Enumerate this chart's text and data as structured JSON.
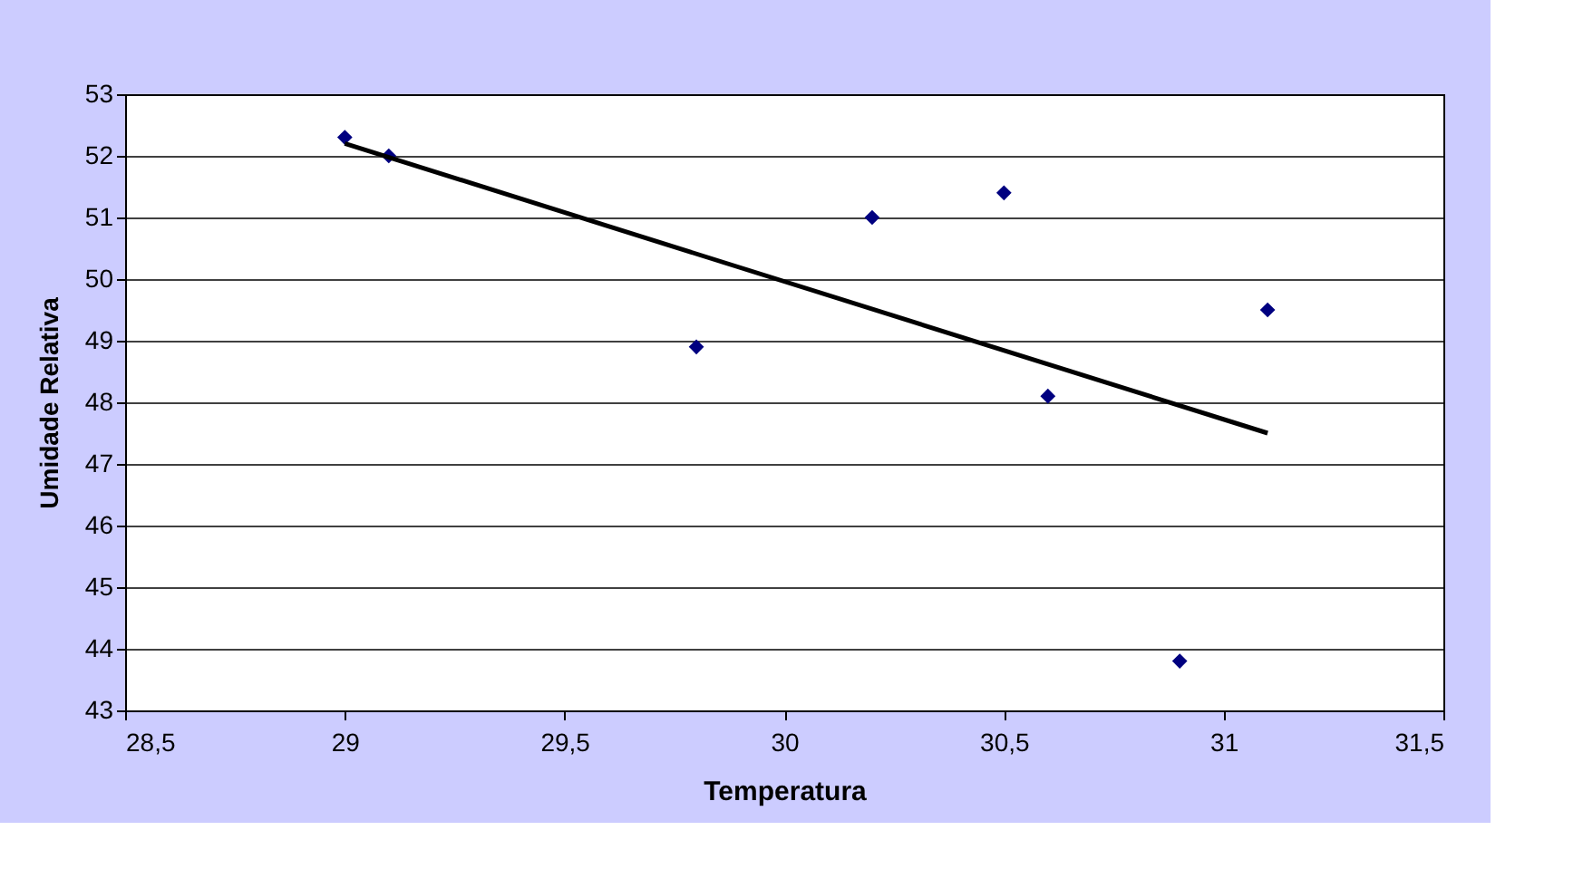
{
  "chart_data": {
    "type": "scatter",
    "xlabel": "Temperatura",
    "ylabel": "Umidade Relativa",
    "series": [
      {
        "color": "#000080",
        "marker": "diamond",
        "x": [
          29,
          29.1,
          29.8,
          30.2,
          30.5,
          30.6,
          30.9,
          31.1
        ],
        "values": [
          52.3,
          52.0,
          48.9,
          51.0,
          51.4,
          48.1,
          43.8,
          49.5
        ]
      },
      {
        "type": "line",
        "color": "#000000",
        "line_style": "solid",
        "x": [
          29,
          31.1
        ],
        "values": [
          52.2,
          47.5
        ]
      }
    ],
    "xlim": [
      28.5,
      31.5
    ],
    "xticks": [
      {
        "value": 28.5,
        "label": "28,5"
      },
      29,
      {
        "value": 29.5,
        "label": "29,5"
      },
      30,
      {
        "value": 30.5,
        "label": "30,5"
      },
      31,
      {
        "value": 31.5,
        "label": "31,5"
      }
    ],
    "ylim": [
      43,
      53
    ],
    "yticks": [
      43,
      44,
      45,
      46,
      47,
      48,
      49,
      50,
      51,
      52,
      53
    ],
    "grid": "y"
  }
}
